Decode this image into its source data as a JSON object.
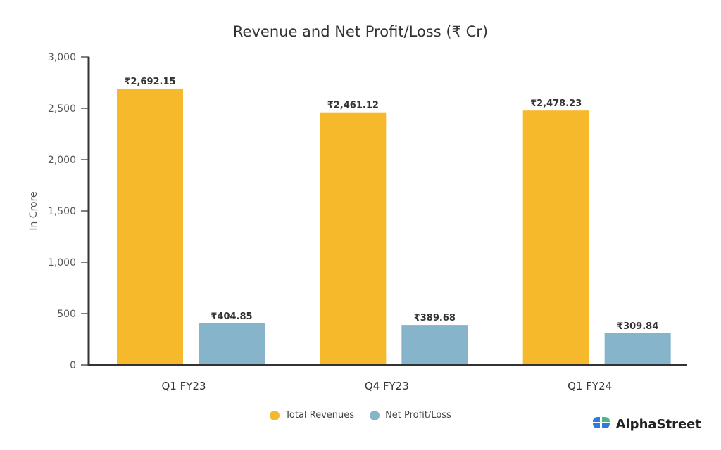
{
  "chart_data": {
    "type": "bar",
    "title": "Revenue and Net Profit/Loss (₹ Cr)",
    "xlabel": "",
    "ylabel": "In Crore",
    "ylim": [
      0,
      3000
    ],
    "yticks": [
      0,
      500,
      1000,
      1500,
      2000,
      2500,
      3000
    ],
    "ytick_labels": [
      "0",
      "500",
      "1,000",
      "1,500",
      "2,000",
      "2,500",
      "3,000"
    ],
    "grid": false,
    "legend_position": "bottom-center",
    "categories": [
      "Q1 FY23",
      "Q4 FY23",
      "Q1 FY24"
    ],
    "series": [
      {
        "name": "Total Revenues",
        "color": "#F6B92B",
        "values": [
          2692.15,
          2461.12,
          2478.23
        ],
        "labels": [
          "₹2,692.15",
          "₹2,461.12",
          "₹2,478.23"
        ]
      },
      {
        "name": "Net Profit/Loss",
        "color": "#86B4CA",
        "values": [
          404.85,
          389.68,
          309.84
        ],
        "labels": [
          "₹404.85",
          "₹389.68",
          "₹309.84"
        ]
      }
    ]
  },
  "brand": {
    "name": "AlphaStreet",
    "icon": "alphastreet-logo-icon",
    "icon_colors": [
      "#2E7BE0",
      "#4CB88A"
    ]
  }
}
